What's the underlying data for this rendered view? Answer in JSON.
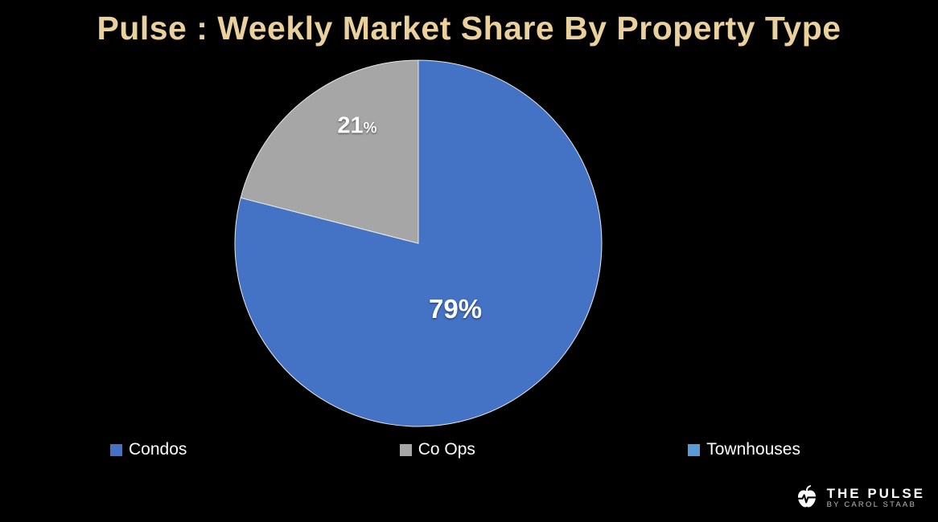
{
  "title": "Pulse : Weekly Market Share By Property Type",
  "chart_data": {
    "type": "pie",
    "categories": [
      "Condos",
      "Co Ops",
      "Townhouses"
    ],
    "values": [
      79,
      21,
      0
    ],
    "colors": [
      "#4472c4",
      "#a6a6a6",
      "#5b9bd5"
    ],
    "start_angle_deg": 0,
    "direction": "clockwise",
    "legend_position": "bottom",
    "data_labels": {
      "condos": {
        "value": "79",
        "unit": "%"
      },
      "coops": {
        "value": "21",
        "unit": "%"
      }
    }
  },
  "legend": {
    "items": [
      {
        "label": "Condos",
        "color": "#4472c4"
      },
      {
        "label": "Co Ops",
        "color": "#a6a6a6"
      },
      {
        "label": "Townhouses",
        "color": "#5b9bd5"
      }
    ]
  },
  "branding": {
    "name": "THE PULSE",
    "byline": "BY CAROL STAAB"
  },
  "colors": {
    "background": "#000000",
    "title": "#e9d09c",
    "slice_stroke": "#e8e8e8"
  }
}
